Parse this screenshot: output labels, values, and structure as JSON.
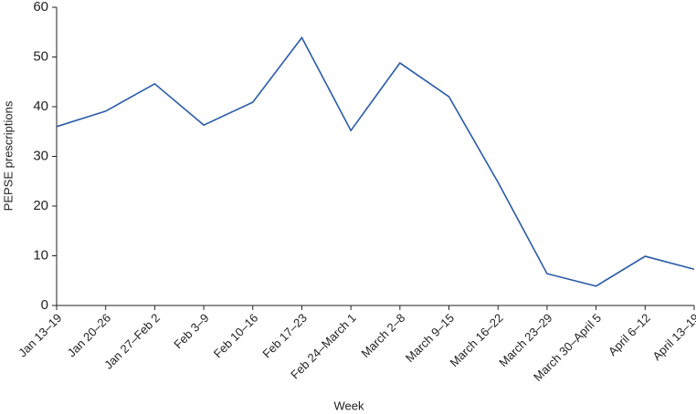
{
  "chart_data": {
    "type": "line",
    "x_label": "Week",
    "y_label": "PEPSE prescriptions",
    "categories": [
      "Jan 13–19",
      "Jan 20–26",
      "Jan 27–Feb 2",
      "Feb 3–9",
      "Feb 10–16",
      "Feb 17–23",
      "Feb 24–March 1",
      "March 2–8",
      "March 9–15",
      "March 16–22",
      "March 23–29",
      "March 30–April 5",
      "April 6–12",
      "April 13–19"
    ],
    "series": [
      {
        "name": "PEPSE prescriptions",
        "color": "#2a5ba8",
        "values": [
          36.0,
          39.1,
          44.6,
          36.3,
          40.9,
          53.9,
          35.2,
          48.8,
          42.0,
          24.8,
          6.4,
          3.9,
          9.9,
          7.3
        ]
      }
    ],
    "ylim": [
      0,
      60
    ],
    "yticks": [
      0,
      10,
      20,
      30,
      40,
      50,
      60
    ],
    "grid": false
  }
}
